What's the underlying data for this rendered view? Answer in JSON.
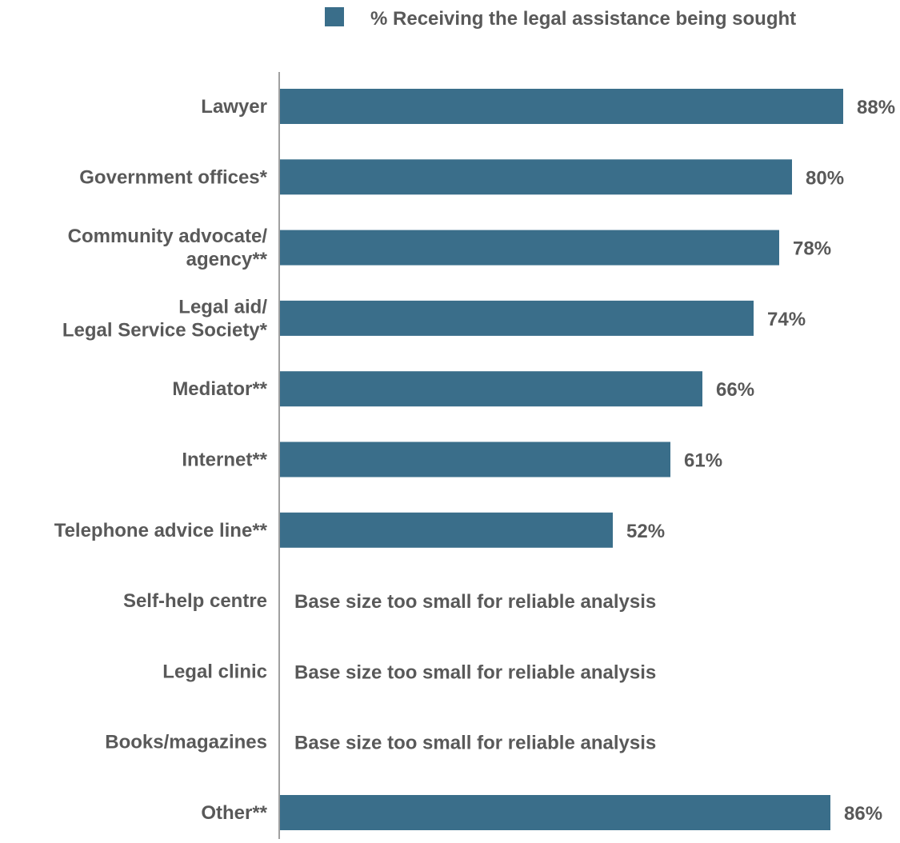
{
  "chart_data": {
    "type": "bar",
    "orientation": "horizontal",
    "legend": {
      "position": "top",
      "entries": [
        "% Receiving the legal assistance being sought"
      ]
    },
    "series": [
      {
        "name": "% Receiving the legal assistance being sought",
        "color": "#3a6e8a"
      }
    ],
    "categories": [
      [
        "Lawyer"
      ],
      [
        "Government offices*"
      ],
      [
        "Community advocate/",
        "agency**"
      ],
      [
        "Legal aid/",
        "Legal Service Society*"
      ],
      [
        "Mediator**"
      ],
      [
        "Internet**"
      ],
      [
        "Telephone advice line**"
      ],
      [
        "Self-help centre"
      ],
      [
        "Legal clinic"
      ],
      [
        "Books/magazines"
      ],
      [
        "Other**"
      ]
    ],
    "values": [
      88,
      80,
      78,
      74,
      66,
      61,
      52,
      null,
      null,
      null,
      86
    ],
    "data_labels": [
      "88%",
      "80%",
      "78%",
      "74%",
      "66%",
      "61%",
      "52%",
      null,
      null,
      null,
      "86%"
    ],
    "notes": [
      null,
      null,
      null,
      null,
      null,
      null,
      null,
      "Base size too small for reliable analysis",
      "Base size too small for reliable analysis",
      "Base size too small for reliable analysis",
      null
    ],
    "xlim": [
      0,
      88
    ],
    "grid": false,
    "text_color": "#595959",
    "axis_color": "#808080"
  }
}
